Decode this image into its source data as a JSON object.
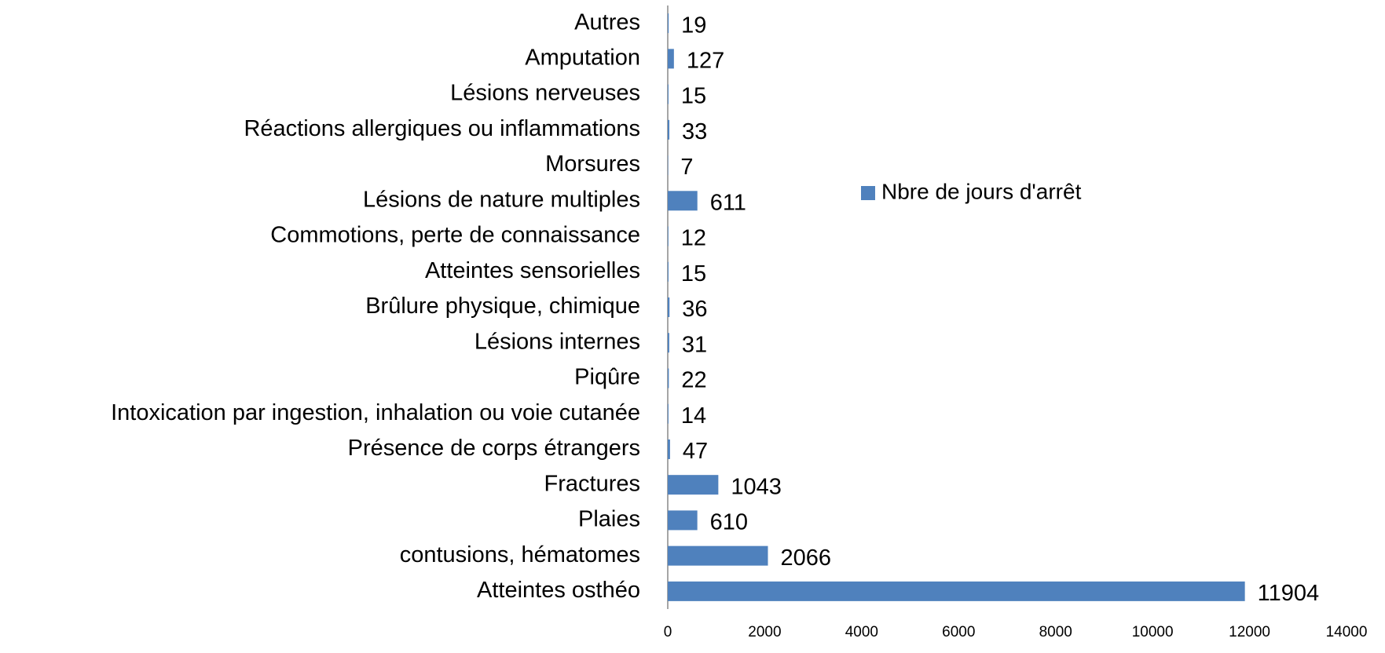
{
  "chart_data": {
    "type": "bar",
    "orientation": "horizontal",
    "categories": [
      "Autres",
      "Amputation",
      "Lésions nerveuses",
      "Réactions allergiques ou inflammations",
      "Morsures",
      "Lésions de nature multiples",
      "Commotions, perte de connaissance",
      "Atteintes sensorielles",
      "Brûlure physique, chimique",
      "Lésions internes",
      "Piqûre",
      "Intoxication par ingestion, inhalation ou voie cutanée",
      "Présence de corps étrangers",
      "Fractures",
      "Plaies",
      "contusions, hématomes",
      "Atteintes osthéo"
    ],
    "series": [
      {
        "name": "Nbre de jours d'arrêt",
        "color": "#4f81bd",
        "values": [
          19,
          127,
          15,
          33,
          7,
          611,
          12,
          15,
          36,
          31,
          22,
          14,
          47,
          1043,
          610,
          2066,
          11904
        ]
      }
    ],
    "xlim": [
      0,
      14000
    ],
    "xticks": [
      0,
      2000,
      4000,
      6000,
      8000,
      10000,
      12000,
      14000
    ],
    "grid": false,
    "legend": "right"
  }
}
